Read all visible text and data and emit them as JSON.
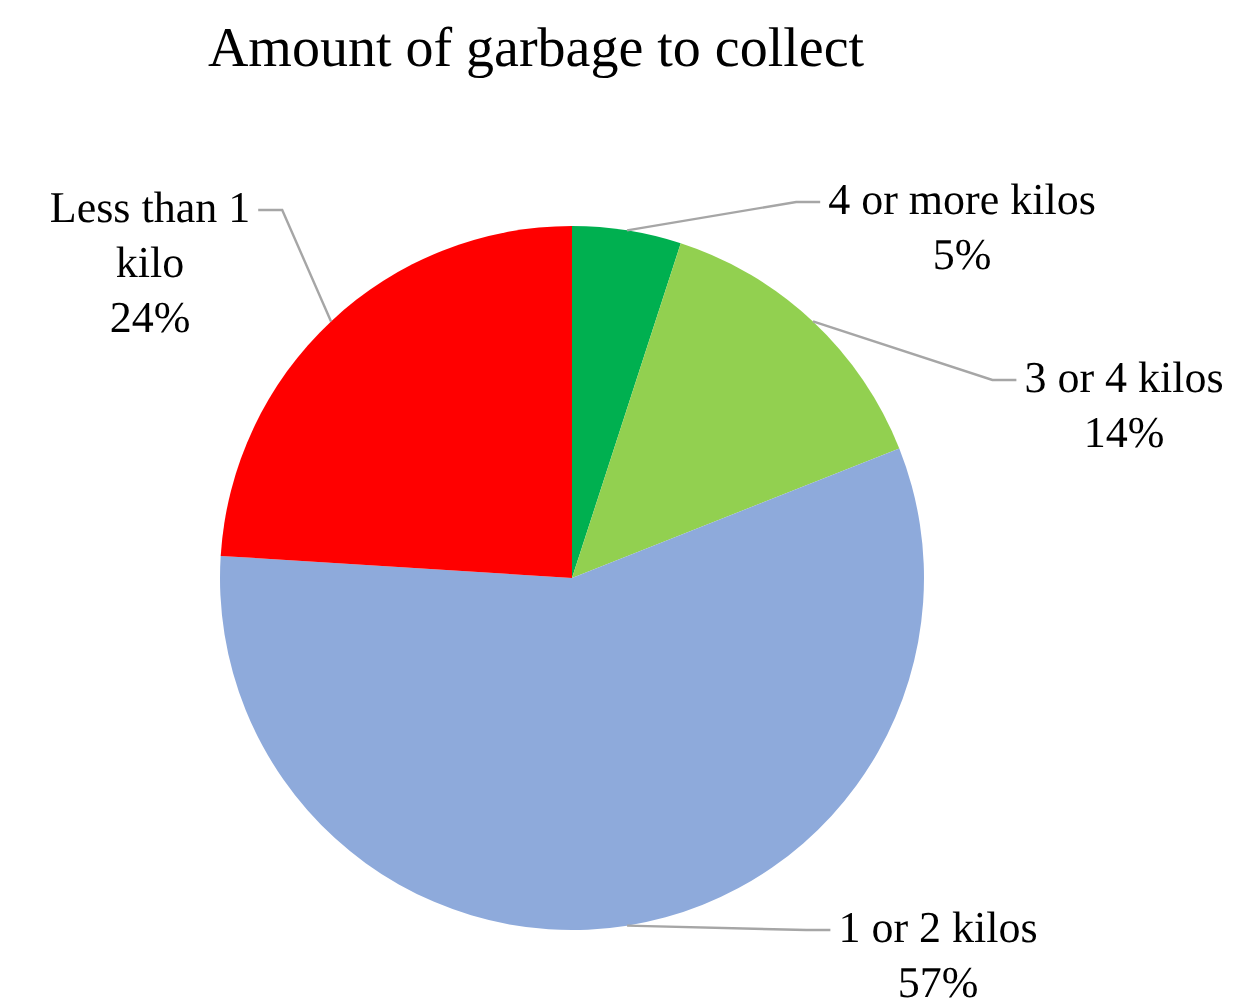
{
  "chart_data": {
    "type": "pie",
    "title": "Amount of garbage to collect",
    "categories": [
      "4 or more kilos",
      "3 or 4 kilos",
      "1 or 2 kilos",
      "Less than 1 kilo"
    ],
    "values": [
      5,
      14,
      57,
      24
    ],
    "colors": [
      "#00b050",
      "#92d050",
      "#8eaadb",
      "#ff0000"
    ],
    "value_labels": [
      "5%",
      "14%",
      "57%",
      "24%"
    ]
  }
}
